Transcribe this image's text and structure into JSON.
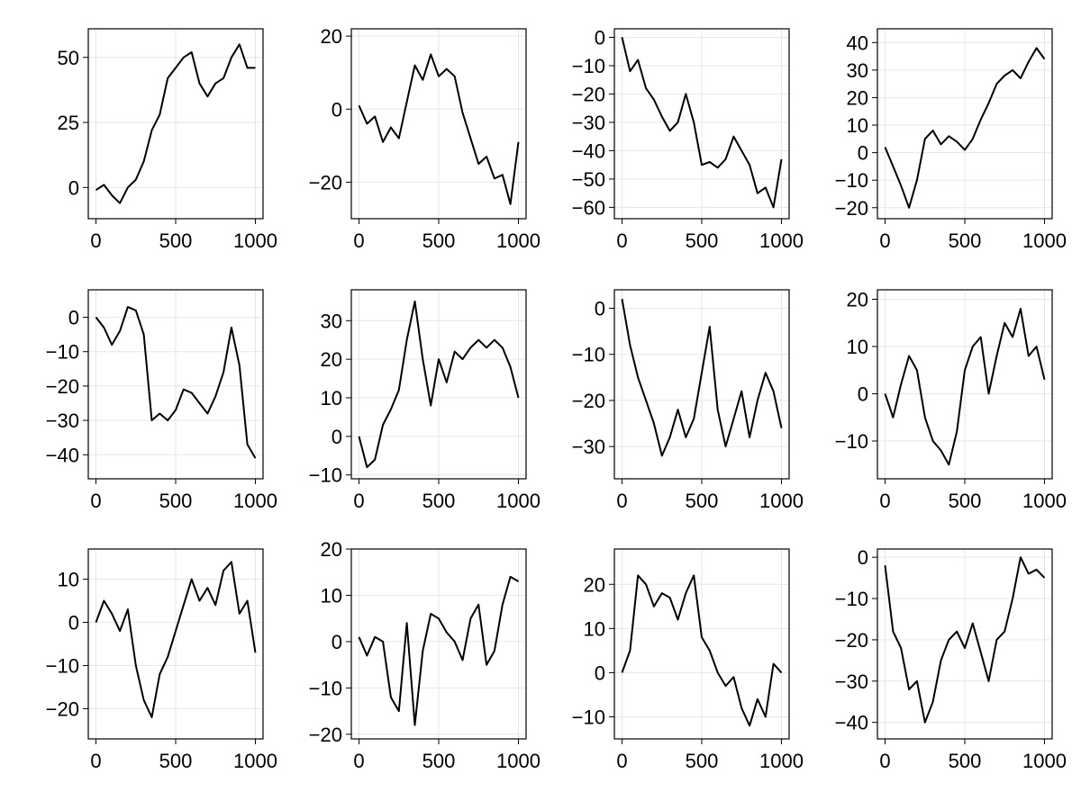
{
  "chart_data": [
    {
      "type": "line",
      "xlim": [
        0,
        1000
      ],
      "ylim": [
        -12,
        61
      ],
      "grid": true,
      "xticks": [
        0,
        500,
        1000
      ],
      "xtick_labels": [
        "0",
        "500",
        "1000"
      ],
      "yticks": [
        0,
        25,
        50
      ],
      "ytick_labels": [
        "0",
        "25",
        "50"
      ],
      "series": [
        {
          "x": [
            0,
            50,
            100,
            150,
            200,
            250,
            300,
            350,
            400,
            450,
            500,
            550,
            600,
            650,
            700,
            750,
            800,
            850,
            900,
            950,
            1000
          ],
          "y": [
            -1,
            1,
            -3,
            -6,
            0,
            3,
            10,
            22,
            28,
            42,
            46,
            50,
            52,
            40,
            35,
            40,
            42,
            50,
            55,
            46,
            46
          ]
        }
      ]
    },
    {
      "type": "line",
      "xlim": [
        0,
        1000
      ],
      "ylim": [
        -30,
        22
      ],
      "grid": true,
      "xticks": [
        0,
        500,
        1000
      ],
      "xtick_labels": [
        "0",
        "500",
        "1000"
      ],
      "yticks": [
        -20,
        0,
        20
      ],
      "ytick_labels": [
        "−20",
        "0",
        "20"
      ],
      "series": [
        {
          "x": [
            0,
            50,
            100,
            150,
            200,
            250,
            300,
            350,
            400,
            450,
            500,
            550,
            600,
            650,
            700,
            750,
            800,
            850,
            900,
            950,
            1000
          ],
          "y": [
            1,
            -4,
            -2,
            -9,
            -5,
            -8,
            2,
            12,
            8,
            15,
            9,
            11,
            9,
            -1,
            -8,
            -15,
            -13,
            -19,
            -18,
            -26,
            -9
          ]
        }
      ]
    },
    {
      "type": "line",
      "xlim": [
        0,
        1000
      ],
      "ylim": [
        -64,
        3
      ],
      "grid": true,
      "xticks": [
        0,
        500,
        1000
      ],
      "xtick_labels": [
        "0",
        "500",
        "1000"
      ],
      "yticks": [
        0,
        -10,
        -20,
        -30,
        -40,
        -50,
        -60
      ],
      "ytick_labels": [
        "0",
        "−10",
        "−20",
        "−30",
        "−40",
        "−50",
        "−60"
      ],
      "series": [
        {
          "x": [
            0,
            50,
            100,
            150,
            200,
            250,
            300,
            350,
            400,
            450,
            500,
            550,
            600,
            650,
            700,
            750,
            800,
            850,
            900,
            950,
            1000
          ],
          "y": [
            0,
            -12,
            -8,
            -18,
            -22,
            -28,
            -33,
            -30,
            -20,
            -30,
            -45,
            -44,
            -46,
            -43,
            -35,
            -40,
            -45,
            -55,
            -53,
            -60,
            -43
          ]
        }
      ]
    },
    {
      "type": "line",
      "xlim": [
        0,
        1000
      ],
      "ylim": [
        -24,
        45
      ],
      "grid": true,
      "xticks": [
        0,
        500,
        1000
      ],
      "xtick_labels": [
        "0",
        "500",
        "1000"
      ],
      "yticks": [
        -20,
        -10,
        0,
        10,
        20,
        30,
        40
      ],
      "ytick_labels": [
        "−20",
        "−10",
        "0",
        "10",
        "20",
        "30",
        "40"
      ],
      "series": [
        {
          "x": [
            0,
            50,
            100,
            150,
            200,
            250,
            300,
            350,
            400,
            450,
            500,
            550,
            600,
            650,
            700,
            750,
            800,
            850,
            900,
            950,
            1000
          ],
          "y": [
            2,
            -5,
            -12,
            -20,
            -10,
            5,
            8,
            3,
            6,
            4,
            1,
            5,
            12,
            18,
            25,
            28,
            30,
            27,
            33,
            38,
            34
          ]
        }
      ]
    },
    {
      "type": "line",
      "xlim": [
        0,
        1000
      ],
      "ylim": [
        -47,
        8
      ],
      "grid": true,
      "xticks": [
        0,
        500,
        1000
      ],
      "xtick_labels": [
        "0",
        "500",
        "1000"
      ],
      "yticks": [
        0,
        -10,
        -20,
        -30,
        -40
      ],
      "ytick_labels": [
        "0",
        "−10",
        "−20",
        "−30",
        "−40"
      ],
      "series": [
        {
          "x": [
            0,
            50,
            100,
            150,
            200,
            250,
            300,
            350,
            400,
            450,
            500,
            550,
            600,
            650,
            700,
            750,
            800,
            850,
            900,
            950,
            1000
          ],
          "y": [
            0,
            -3,
            -8,
            -4,
            3,
            2,
            -5,
            -30,
            -28,
            -30,
            -27,
            -21,
            -22,
            -25,
            -28,
            -23,
            -16,
            -3,
            -14,
            -37,
            -41
          ]
        }
      ]
    },
    {
      "type": "line",
      "xlim": [
        0,
        1000
      ],
      "ylim": [
        -11,
        38
      ],
      "grid": true,
      "xticks": [
        0,
        500,
        1000
      ],
      "xtick_labels": [
        "0",
        "500",
        "1000"
      ],
      "yticks": [
        -10,
        0,
        10,
        20,
        30
      ],
      "ytick_labels": [
        "−10",
        "0",
        "10",
        "20",
        "30"
      ],
      "series": [
        {
          "x": [
            0,
            50,
            100,
            150,
            200,
            250,
            300,
            350,
            400,
            450,
            500,
            550,
            600,
            650,
            700,
            750,
            800,
            850,
            900,
            950,
            1000
          ],
          "y": [
            0,
            -8,
            -6,
            3,
            7,
            12,
            25,
            35,
            20,
            8,
            20,
            14,
            22,
            20,
            23,
            25,
            23,
            25,
            23,
            18,
            10
          ]
        }
      ]
    },
    {
      "type": "line",
      "xlim": [
        0,
        1000
      ],
      "ylim": [
        -37,
        4
      ],
      "grid": true,
      "xticks": [
        0,
        500,
        1000
      ],
      "xtick_labels": [
        "0",
        "500",
        "1000"
      ],
      "yticks": [
        0,
        -10,
        -20,
        -30
      ],
      "ytick_labels": [
        "0",
        "−10",
        "−20",
        "−30"
      ],
      "series": [
        {
          "x": [
            0,
            50,
            100,
            150,
            200,
            250,
            300,
            350,
            400,
            450,
            500,
            550,
            600,
            650,
            700,
            750,
            800,
            850,
            900,
            950,
            1000
          ],
          "y": [
            2,
            -8,
            -15,
            -20,
            -25,
            -32,
            -28,
            -22,
            -28,
            -24,
            -14,
            -4,
            -22,
            -30,
            -24,
            -18,
            -28,
            -20,
            -14,
            -18,
            -26
          ]
        }
      ]
    },
    {
      "type": "line",
      "xlim": [
        0,
        1000
      ],
      "ylim": [
        -18,
        22
      ],
      "grid": true,
      "xticks": [
        0,
        500,
        1000
      ],
      "xtick_labels": [
        "0",
        "500",
        "1000"
      ],
      "yticks": [
        -10,
        0,
        10,
        20
      ],
      "ytick_labels": [
        "−10",
        "0",
        "10",
        "20"
      ],
      "series": [
        {
          "x": [
            0,
            50,
            100,
            150,
            200,
            250,
            300,
            350,
            400,
            450,
            500,
            550,
            600,
            650,
            700,
            750,
            800,
            850,
            900,
            950,
            1000
          ],
          "y": [
            0,
            -5,
            2,
            8,
            5,
            -5,
            -10,
            -12,
            -15,
            -8,
            5,
            10,
            12,
            0,
            8,
            15,
            12,
            18,
            8,
            10,
            3
          ]
        }
      ]
    },
    {
      "type": "line",
      "xlim": [
        0,
        1000
      ],
      "ylim": [
        -27,
        17
      ],
      "grid": true,
      "xticks": [
        0,
        500,
        1000
      ],
      "xtick_labels": [
        "0",
        "500",
        "1000"
      ],
      "yticks": [
        -20,
        -10,
        0,
        10
      ],
      "ytick_labels": [
        "−20",
        "−10",
        "0",
        "10"
      ],
      "series": [
        {
          "x": [
            0,
            50,
            100,
            150,
            200,
            250,
            300,
            350,
            400,
            450,
            500,
            550,
            600,
            650,
            700,
            750,
            800,
            850,
            900,
            950,
            1000
          ],
          "y": [
            0,
            5,
            2,
            -2,
            3,
            -10,
            -18,
            -22,
            -12,
            -8,
            -2,
            4,
            10,
            5,
            8,
            4,
            12,
            14,
            2,
            5,
            -7
          ]
        }
      ]
    },
    {
      "type": "line",
      "xlim": [
        0,
        1000
      ],
      "ylim": [
        -21,
        20
      ],
      "grid": true,
      "xticks": [
        0,
        500,
        1000
      ],
      "xtick_labels": [
        "0",
        "500",
        "1000"
      ],
      "yticks": [
        -20,
        -10,
        0,
        10,
        20
      ],
      "ytick_labels": [
        "−20",
        "−10",
        "0",
        "10",
        "20"
      ],
      "series": [
        {
          "x": [
            0,
            50,
            100,
            150,
            200,
            250,
            300,
            350,
            400,
            450,
            500,
            550,
            600,
            650,
            700,
            750,
            800,
            850,
            900,
            950,
            1000
          ],
          "y": [
            1,
            -3,
            1,
            0,
            -12,
            -15,
            4,
            -18,
            -2,
            6,
            5,
            2,
            0,
            -4,
            5,
            8,
            -5,
            -2,
            8,
            14,
            13
          ]
        }
      ]
    },
    {
      "type": "line",
      "xlim": [
        0,
        1000
      ],
      "ylim": [
        -15,
        28
      ],
      "grid": true,
      "xticks": [
        0,
        500,
        1000
      ],
      "xtick_labels": [
        "0",
        "500",
        "1000"
      ],
      "yticks": [
        -10,
        0,
        10,
        20
      ],
      "ytick_labels": [
        "−10",
        "0",
        "10",
        "20"
      ],
      "series": [
        {
          "x": [
            0,
            50,
            100,
            150,
            200,
            250,
            300,
            350,
            400,
            450,
            500,
            550,
            600,
            650,
            700,
            750,
            800,
            850,
            900,
            950,
            1000
          ],
          "y": [
            0,
            5,
            22,
            20,
            15,
            18,
            17,
            12,
            18,
            22,
            8,
            5,
            0,
            -3,
            -1,
            -8,
            -12,
            -6,
            -10,
            2,
            0
          ]
        }
      ]
    },
    {
      "type": "line",
      "xlim": [
        0,
        1000
      ],
      "ylim": [
        -44,
        2
      ],
      "grid": true,
      "xticks": [
        0,
        500,
        1000
      ],
      "xtick_labels": [
        "0",
        "500",
        "1000"
      ],
      "yticks": [
        0,
        -10,
        -20,
        -30,
        -40
      ],
      "ytick_labels": [
        "0",
        "−10",
        "−20",
        "−30",
        "−40"
      ],
      "series": [
        {
          "x": [
            0,
            50,
            100,
            150,
            200,
            250,
            300,
            350,
            400,
            450,
            500,
            550,
            600,
            650,
            700,
            750,
            800,
            850,
            900,
            950,
            1000
          ],
          "y": [
            -2,
            -18,
            -22,
            -32,
            -30,
            -40,
            -35,
            -25,
            -20,
            -18,
            -22,
            -16,
            -23,
            -30,
            -20,
            -18,
            -10,
            0,
            -4,
            -3,
            -5
          ]
        }
      ]
    }
  ]
}
